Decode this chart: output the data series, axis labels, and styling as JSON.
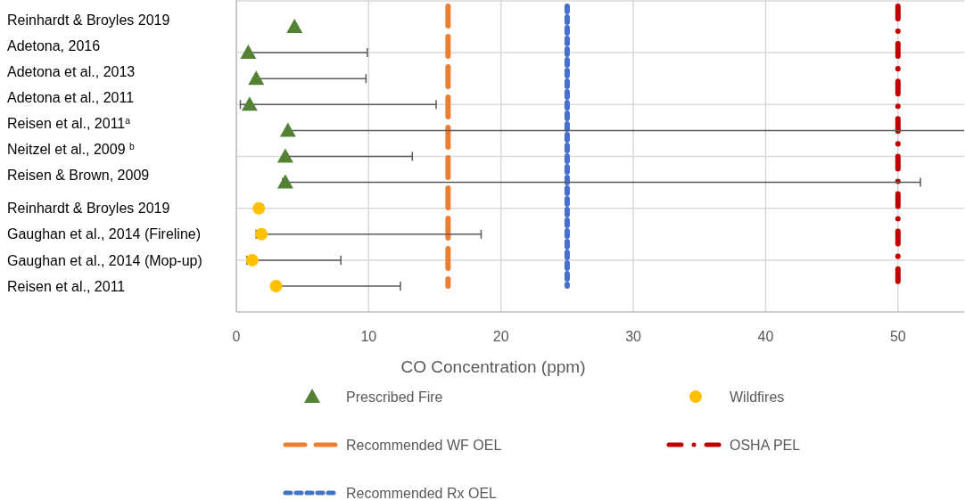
{
  "chart_data": {
    "type": "scatter",
    "orientation": "horizontal",
    "xlabel": "CO Concentration (ppm)",
    "categories": [
      "Reinhardt & Broyles 2019",
      "Adetona, 2016",
      "Adetona et al., 2013",
      "Adetona et al., 2011",
      "Reisen et al., 2011$^{a}$",
      "Neitzel et al., 2009 $^{b}$",
      "Reisen & Brown, 2009",
      "Reinhardt & Broyles 2019",
      "Gaughan et al., 2014 (Fireline)",
      "Gaughan et al., 2014 (Mop-up)",
      "Reisen et al., 2011"
    ],
    "series": [
      {
        "name": "Prescribed Fire",
        "color": "#548235",
        "marker": "triangle",
        "values": [
          4.4,
          0.9,
          1.5,
          1.0,
          3.9,
          3.7,
          3.7,
          null,
          null,
          null,
          null
        ],
        "errors": [
          null,
          [
            0.9,
            9.9
          ],
          [
            1.5,
            9.8
          ],
          [
            0.3,
            15.1
          ],
          [
            3.9,
            55
          ],
          [
            3.7,
            13.3
          ],
          [
            3.5,
            51.7
          ],
          null,
          null,
          null,
          null
        ]
      },
      {
        "name": "Wildfires",
        "color": "#ffc000",
        "marker": "circle",
        "values": [
          null,
          null,
          null,
          null,
          null,
          null,
          null,
          1.7,
          1.9,
          1.2,
          3.0
        ],
        "errors": [
          null,
          null,
          null,
          null,
          null,
          null,
          null,
          null,
          [
            1.5,
            18.5
          ],
          [
            0.8,
            7.9
          ],
          [
            3.0,
            12.4
          ]
        ]
      }
    ],
    "xlim": [
      0,
      55
    ],
    "xticks": [
      0,
      10,
      20,
      30,
      40,
      50
    ],
    "grid": true,
    "legend": "bottom",
    "ref_lines": [
      {
        "axis": "x",
        "value": 16,
        "label": "Recommended WF OEL",
        "color": "#ed7d31",
        "line_style": "dashed"
      },
      {
        "axis": "x",
        "value": 50,
        "label": "OSHA PEL",
        "color": "#c00000",
        "line_style": "dashdot"
      },
      {
        "axis": "x",
        "value": 25,
        "label": "Recommended Rx OEL",
        "color": "#4472c4",
        "line_style": "dotted"
      }
    ]
  }
}
